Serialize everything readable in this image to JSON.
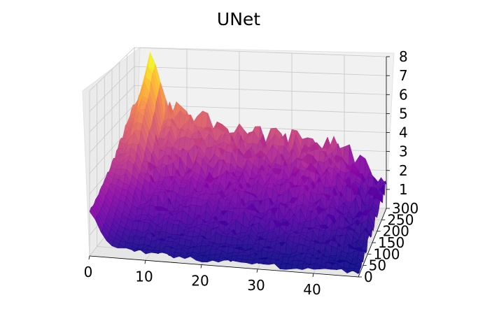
{
  "chart_data": {
    "type": "surface3d",
    "title": "UNet",
    "colormap": "plasma",
    "x_ticks": [
      "0",
      "10",
      "20",
      "30",
      "40"
    ],
    "y_ticks": [
      "0",
      "50",
      "100",
      "150",
      "200",
      "250",
      "300"
    ],
    "z_ticks": [
      "1",
      "2",
      "3",
      "4",
      "5",
      "6",
      "7",
      "8"
    ],
    "xlim": [
      0,
      48
    ],
    "ylim": [
      0,
      300
    ],
    "zlim": [
      0,
      8
    ],
    "grid": true,
    "surface_profile": {
      "x": [
        0,
        1,
        2,
        3,
        4,
        5,
        6,
        8,
        10,
        15,
        20,
        25,
        30,
        35,
        40,
        45,
        48
      ],
      "peak_z": [
        5.0,
        5.4,
        6.6,
        7.6,
        7.3,
        6.2,
        5.2,
        4.7,
        4.5,
        4.2,
        3.9,
        3.7,
        3.5,
        3.6,
        3.0,
        1.8,
        1.5
      ],
      "base_z": [
        2.2,
        1.8,
        1.2,
        0.8,
        0.6,
        0.5,
        0.45,
        0.4,
        0.35,
        0.3,
        0.25,
        0.25,
        0.2,
        0.2,
        0.2,
        0.2,
        0.2
      ]
    }
  }
}
